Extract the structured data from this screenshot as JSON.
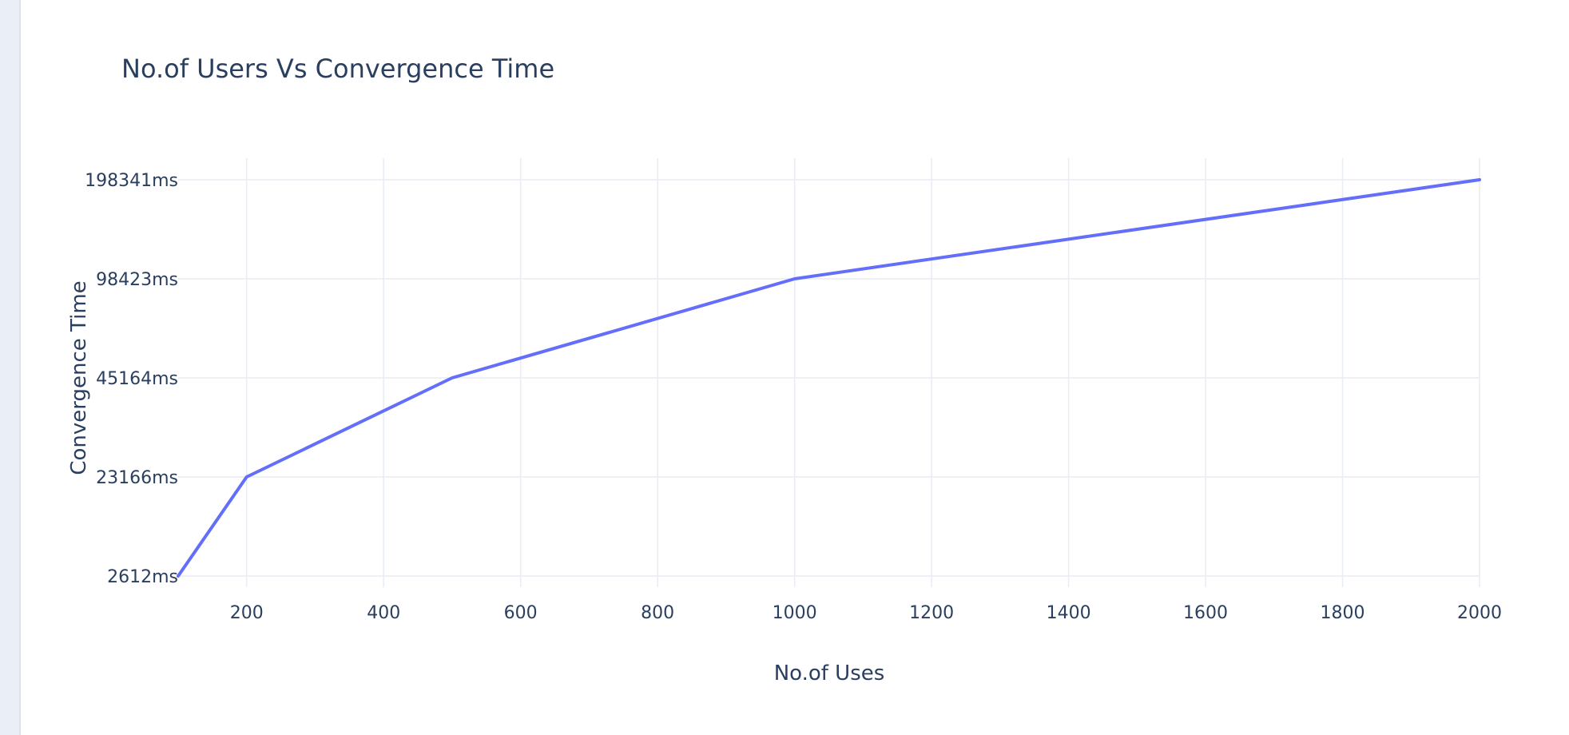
{
  "chart_data": {
    "type": "line",
    "title": "No.of Users Vs Convergence Time",
    "xlabel": "No.of Uses",
    "ylabel": "Convergence Time",
    "x_axis": {
      "range": [
        100,
        2000
      ],
      "tick_values": [
        200,
        400,
        600,
        800,
        1000,
        1200,
        1400,
        1600,
        1800,
        2000
      ],
      "tick_labels": [
        "200",
        "400",
        "600",
        "800",
        "1000",
        "1200",
        "1400",
        "1600",
        "1800",
        "2000"
      ]
    },
    "y_axis": {
      "scale": "categorical",
      "categories": [
        "2612ms",
        "23166ms",
        "45164ms",
        "98423ms",
        "198341ms"
      ]
    },
    "grid": true,
    "legend": "none",
    "series": [
      {
        "color": "#636efa",
        "x": [
          100,
          200,
          500,
          1000,
          2000
        ],
        "y": [
          "2612ms",
          "23166ms",
          "45164ms",
          "98423ms",
          "198341ms"
        ]
      }
    ]
  },
  "colors": {
    "text": "#2a3f5f",
    "grid": "#e8ecf3",
    "sidebar": "#e9eef7"
  }
}
